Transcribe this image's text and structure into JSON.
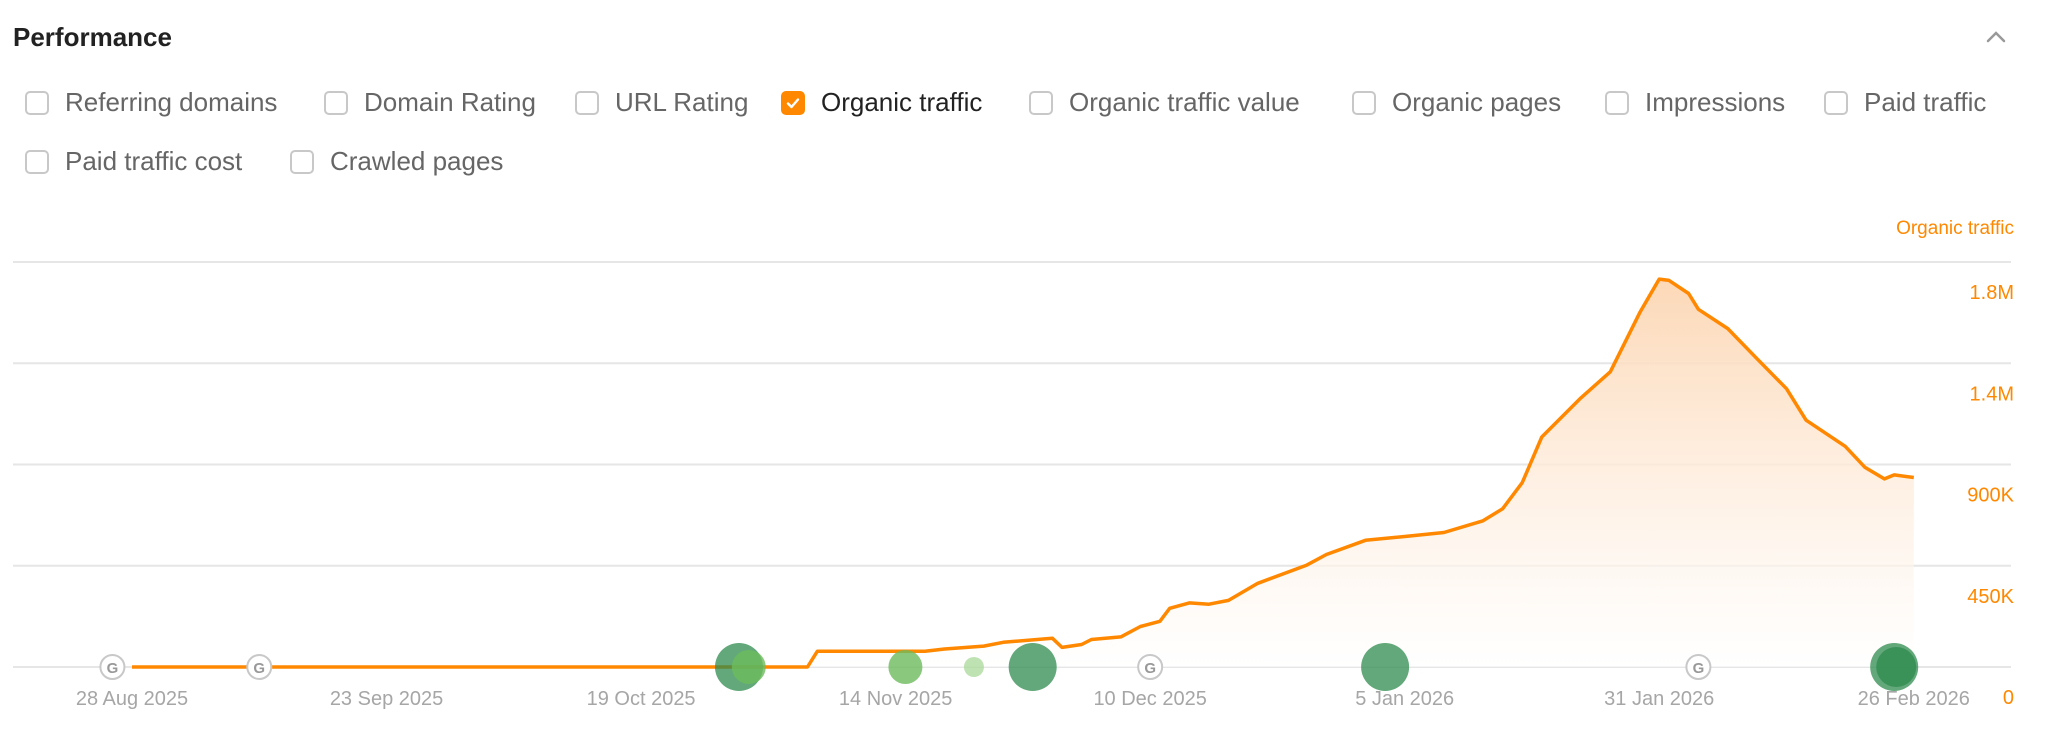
{
  "section": {
    "title": "Performance",
    "collapse_icon": "chevron-up-icon"
  },
  "metrics": [
    {
      "label": "Referring domains",
      "checked": false
    },
    {
      "label": "Domain Rating",
      "checked": false
    },
    {
      "label": "URL Rating",
      "checked": false
    },
    {
      "label": "Organic traffic",
      "checked": true
    },
    {
      "label": "Organic traffic value",
      "checked": false
    },
    {
      "label": "Organic pages",
      "checked": false
    },
    {
      "label": "Impressions",
      "checked": false
    },
    {
      "label": "Paid traffic",
      "checked": false
    },
    {
      "label": "Paid traffic cost",
      "checked": false
    },
    {
      "label": "Crawled pages",
      "checked": false
    }
  ],
  "colors": {
    "accent": "#ff8800",
    "fill_top": "#fcd6b3",
    "marker_dark": "#2e8b4e",
    "marker_mid": "#6dbb5c",
    "marker_light": "#a9d89a",
    "google_marker": "#bbbbbb"
  },
  "chart_data": {
    "type": "area",
    "series": [
      {
        "name": "Organic traffic",
        "points": [
          [
            "2025-08-28",
            0
          ],
          [
            "2025-11-05",
            0
          ],
          [
            "2025-11-06",
            70000
          ],
          [
            "2025-11-17",
            70000
          ],
          [
            "2025-11-19",
            80000
          ],
          [
            "2025-11-23",
            93000
          ],
          [
            "2025-11-25",
            110000
          ],
          [
            "2025-11-30",
            128000
          ],
          [
            "2025-12-01",
            87000
          ],
          [
            "2025-12-03",
            100000
          ],
          [
            "2025-12-04",
            122000
          ],
          [
            "2025-12-07",
            134000
          ],
          [
            "2025-12-09",
            180000
          ],
          [
            "2025-12-11",
            203000
          ],
          [
            "2025-12-12",
            261000
          ],
          [
            "2025-12-14",
            285000
          ],
          [
            "2025-12-16",
            279000
          ],
          [
            "2025-12-18",
            296000
          ],
          [
            "2025-12-21",
            372000
          ],
          [
            "2025-12-26",
            453000
          ],
          [
            "2025-12-28",
            500000
          ],
          [
            "2026-01-01",
            563000
          ],
          [
            "2026-01-05",
            580000
          ],
          [
            "2026-01-09",
            598000
          ],
          [
            "2026-01-13",
            650000
          ],
          [
            "2026-01-15",
            703000
          ],
          [
            "2026-01-17",
            819000
          ],
          [
            "2026-01-19",
            1022000
          ],
          [
            "2026-01-23",
            1196000
          ],
          [
            "2026-01-26",
            1312000
          ],
          [
            "2026-01-29",
            1574000
          ],
          [
            "2026-01-31",
            1724000
          ],
          [
            "2026-02-01",
            1718000
          ],
          [
            "2026-02-03",
            1660000
          ],
          [
            "2026-02-04",
            1590000
          ],
          [
            "2026-02-07",
            1504000
          ],
          [
            "2026-02-10",
            1370000
          ],
          [
            "2026-02-13",
            1237000
          ],
          [
            "2026-02-15",
            1097000
          ],
          [
            "2026-02-19",
            981000
          ],
          [
            "2026-02-21",
            888000
          ],
          [
            "2026-02-23",
            836000
          ],
          [
            "2026-02-24",
            854000
          ],
          [
            "2026-02-26",
            842000
          ]
        ]
      }
    ],
    "y_axis": {
      "title": "Organic traffic",
      "position": "right",
      "ticks": [
        "0",
        "450K",
        "900K",
        "1.4M",
        "1.8M"
      ],
      "tick_values": [
        0,
        450000,
        900000,
        1350000,
        1800000
      ],
      "range": [
        0,
        1800000
      ]
    },
    "x_axis": {
      "ticks": [
        "28 Aug 2025",
        "23 Sep 2025",
        "19 Oct 2025",
        "14 Nov 2025",
        "10 Dec 2025",
        "5 Jan 2026",
        "31 Jan 2026",
        "26 Feb 2026"
      ],
      "tick_dates": [
        "2025-08-28",
        "2025-09-23",
        "2025-10-19",
        "2025-11-14",
        "2025-12-10",
        "2026-01-05",
        "2026-01-31",
        "2026-02-26"
      ],
      "range": [
        "2025-08-28",
        "2026-02-26"
      ]
    },
    "grid": true,
    "google_update_markers": [
      "2025-08-26",
      "2025-09-10",
      "2025-12-10",
      "2026-02-04"
    ],
    "event_markers": [
      {
        "date": "2025-10-29",
        "size": "large",
        "tone": "dark"
      },
      {
        "date": "2025-10-30",
        "size": "medium",
        "tone": "mid"
      },
      {
        "date": "2025-11-15",
        "size": "medium",
        "tone": "mid"
      },
      {
        "date": "2025-11-22",
        "size": "small",
        "tone": "light"
      },
      {
        "date": "2025-11-28",
        "size": "large",
        "tone": "dark"
      },
      {
        "date": "2026-01-03",
        "size": "large",
        "tone": "dark"
      },
      {
        "date": "2026-02-24",
        "size": "large",
        "tone": "dark"
      },
      {
        "date": "2026-02-24",
        "size": "large",
        "tone": "dark"
      }
    ]
  }
}
